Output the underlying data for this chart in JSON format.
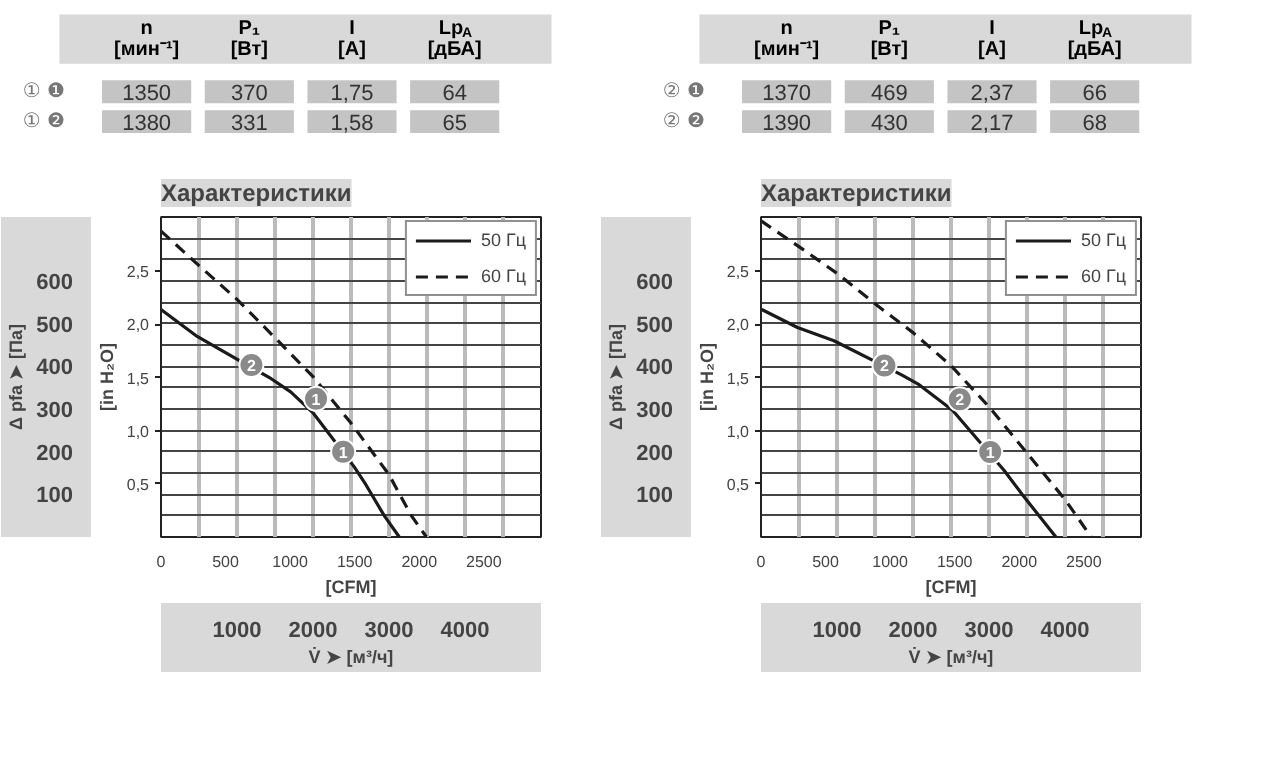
{
  "chart_data": [
    {
      "type": "other",
      "categories": [
        "n\n[мин⁻¹]",
        "P₁\n[Вт]",
        "I\n[А]",
        "Lp$_{A}$\n[дБА]"
      ],
      "legend": "left",
      "data_labels": true,
      "series": [
        {
          "name": "① ❶",
          "values": [
            1350,
            370,
            1.75,
            64
          ],
          "value_labels": [
            "1350",
            "370",
            "1,75",
            "64"
          ]
        },
        {
          "name": "① ❷",
          "values": [
            1380,
            331,
            1.58,
            65
          ],
          "value_labels": [
            "1380",
            "331",
            "1,58",
            "65"
          ]
        }
      ]
    },
    {
      "type": "other",
      "categories": [
        "n\n[мин⁻¹]",
        "P₁\n[Вт]",
        "I\n[А]",
        "Lp$_{A}$\n[дБА]"
      ],
      "legend": "left",
      "data_labels": true,
      "series": [
        {
          "name": "② ❶",
          "values": [
            1370,
            469,
            2.37,
            66
          ],
          "value_labels": [
            "1370",
            "469",
            "2,37",
            "66"
          ]
        },
        {
          "name": "② ❷",
          "values": [
            1390,
            430,
            2.17,
            68
          ],
          "value_labels": [
            "1390",
            "430",
            "2,17",
            "68"
          ]
        }
      ]
    },
    {
      "type": "line",
      "title": "Характеристики",
      "xlabel": "V̇ ➤ [м³/ч]",
      "x2label": "[CFM]",
      "ylabel": "Δ pfa ➤ [Па]",
      "y2label": "[in H₂O]",
      "xlim": [
        0,
        5000
      ],
      "xticks": [
        {
          "value": 0,
          "label": null
        },
        {
          "value": 500,
          "label": null
        },
        1000,
        {
          "value": 1500,
          "label": null
        },
        2000,
        {
          "value": 2500,
          "label": null
        },
        3000,
        {
          "value": 3500,
          "label": null
        },
        4000,
        {
          "value": 4500,
          "label": null
        },
        {
          "value": 5000,
          "label": null
        }
      ],
      "x2lim": [
        0,
        2943
      ],
      "x2ticks": [
        0,
        500,
        1000,
        1500,
        2000,
        2500
      ],
      "ylim": [
        0,
        750
      ],
      "yticks": [
        {
          "value": 50,
          "label": null
        },
        100,
        {
          "value": 150,
          "label": null
        },
        200,
        {
          "value": 250,
          "label": null
        },
        300,
        {
          "value": 350,
          "label": null
        },
        400,
        {
          "value": 450,
          "label": null
        },
        500,
        {
          "value": 550,
          "label": null
        },
        600,
        {
          "value": 650,
          "label": null
        },
        {
          "value": 700,
          "label": null
        }
      ],
      "y2lim": [
        0,
        3.01
      ],
      "y2ticks": [
        {
          "value": 0.5,
          "label": "0,5"
        },
        {
          "value": 1.0,
          "label": "1,0"
        },
        {
          "value": 1.5,
          "label": "1,5"
        },
        {
          "value": 2.0,
          "label": "2,0"
        },
        {
          "value": 2.5,
          "label": "2,5"
        }
      ],
      "grid": true,
      "legend": "top right",
      "series": [
        {
          "name": "50 Гц",
          "color": "#1a1a1a",
          "line_style": "solid",
          "x": [
            0,
            476,
            1450,
            1706,
            2000,
            2540,
            2698,
            2937,
            3135
          ],
          "values": [
            533,
            470,
            371,
            340,
            291,
            165,
            122,
            50,
            0
          ]
        },
        {
          "name": "60 Гц",
          "color": "#1a1a1a",
          "line_style": "dashed",
          "x": [
            0,
            500,
            1000,
            1500,
            2000,
            2500,
            3000,
            3294,
            3492
          ],
          "values": [
            717,
            636,
            557,
            467,
            376,
            267,
            146,
            50,
            0
          ]
        }
      ],
      "annotations": [
        {
          "text": "2",
          "x": 1190,
          "y": 403
        },
        {
          "text": "1",
          "x": 2040,
          "y": 324
        },
        {
          "text": "1",
          "x": 2397,
          "y": 200
        }
      ]
    },
    {
      "type": "line",
      "title": "Характеристики",
      "xlabel": "V̇ ➤ [м³/ч]",
      "x2label": "[CFM]",
      "ylabel": "Δ pfa ➤ [Па]",
      "y2label": "[in H₂O]",
      "xlim": [
        0,
        5000
      ],
      "xticks": [
        {
          "value": 0,
          "label": null
        },
        {
          "value": 500,
          "label": null
        },
        1000,
        {
          "value": 1500,
          "label": null
        },
        2000,
        {
          "value": 2500,
          "label": null
        },
        3000,
        {
          "value": 3500,
          "label": null
        },
        4000,
        {
          "value": 4500,
          "label": null
        },
        {
          "value": 5000,
          "label": null
        }
      ],
      "x2lim": [
        0,
        2943
      ],
      "x2ticks": [
        0,
        500,
        1000,
        1500,
        2000,
        2500
      ],
      "ylim": [
        0,
        750
      ],
      "yticks": [
        {
          "value": 50,
          "label": null
        },
        100,
        {
          "value": 150,
          "label": null
        },
        200,
        {
          "value": 250,
          "label": null
        },
        300,
        {
          "value": 350,
          "label": null
        },
        400,
        {
          "value": 450,
          "label": null
        },
        500,
        {
          "value": 550,
          "label": null
        },
        600,
        {
          "value": 650,
          "label": null
        },
        {
          "value": 700,
          "label": null
        }
      ],
      "y2lim": [
        0,
        3.01
      ],
      "y2ticks": [
        {
          "value": 0.5,
          "label": "0,5"
        },
        {
          "value": 1.0,
          "label": "1,0"
        },
        {
          "value": 1.5,
          "label": "1,5"
        },
        {
          "value": 2.0,
          "label": "2,0"
        },
        {
          "value": 2.5,
          "label": "2,5"
        }
      ],
      "grid": true,
      "legend": "top right",
      "series": [
        {
          "name": "50 Гц",
          "color": "#1a1a1a",
          "line_style": "solid",
          "x": [
            0,
            480,
            960,
            1850,
            2080,
            2520,
            3200,
            3440,
            3880
          ],
          "values": [
            534,
            491,
            460,
            380,
            357,
            297,
            156,
            99,
            0
          ]
        },
        {
          "name": "60 Гц",
          "color": "#1a1a1a",
          "line_style": "dashed",
          "x": [
            0,
            504,
            1000,
            1504,
            2000,
            2504,
            3000,
            3504,
            4000,
            4344
          ],
          "values": [
            741,
            680,
            618,
            546,
            479,
            401,
            305,
            196,
            88,
            0
          ]
        }
      ],
      "annotations": [
        {
          "text": "2",
          "x": 1624,
          "y": 402
        },
        {
          "text": "2",
          "x": 2616,
          "y": 323
        },
        {
          "text": "1",
          "x": 3016,
          "y": 199
        }
      ]
    }
  ]
}
